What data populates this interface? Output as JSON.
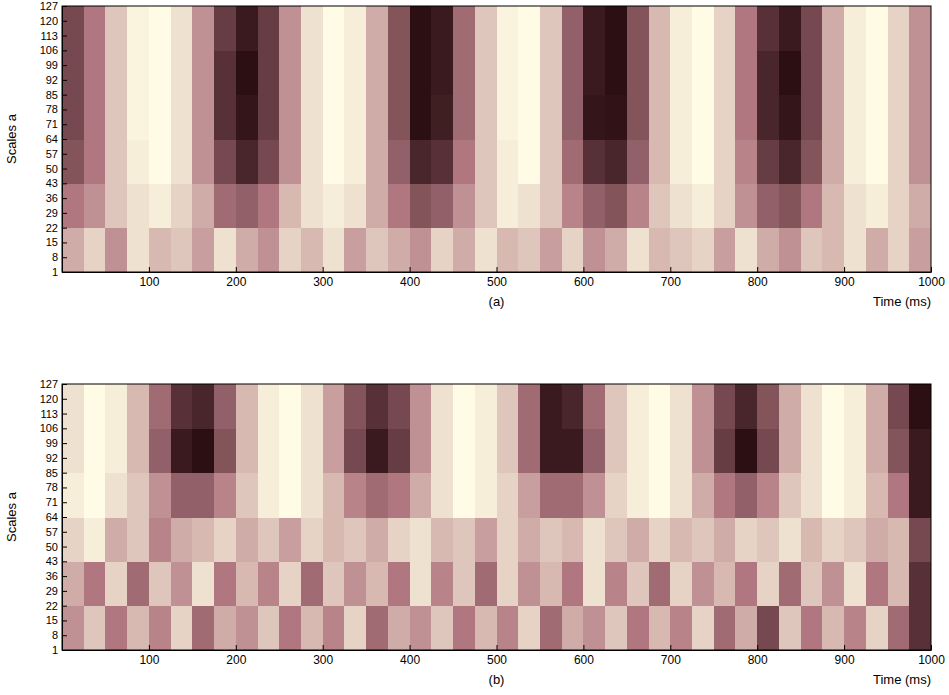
{
  "chart_data": [
    {
      "type": "heatmap",
      "title": "(a)",
      "x_label": "Time (ms)",
      "y_label": "Scales a",
      "xlim": [
        0,
        1000
      ],
      "xticks": [
        100,
        200,
        300,
        400,
        500,
        600,
        700,
        800,
        900,
        1000
      ],
      "ylim": [
        1,
        127
      ],
      "yticks": [
        1,
        8,
        15,
        22,
        29,
        36,
        43,
        50,
        57,
        64,
        71,
        78,
        85,
        92,
        99,
        106,
        113,
        120,
        127
      ],
      "x_edges": [
        0,
        25,
        50,
        75,
        100,
        125,
        150,
        175,
        200,
        225,
        250,
        275,
        300,
        325,
        350,
        375,
        400,
        425,
        450,
        475,
        500,
        525,
        550,
        575,
        600,
        625,
        650,
        675,
        700,
        725,
        750,
        775,
        800,
        825,
        850,
        875,
        900,
        925,
        950,
        975,
        1000
      ],
      "y_edges": [
        1,
        22,
        43,
        64,
        85,
        106,
        127
      ],
      "zlim": [
        0,
        1
      ],
      "cells": [
        [
          0.7,
          0.85,
          0.6,
          0.9,
          0.75,
          0.8,
          0.65,
          0.9,
          0.7,
          0.6,
          0.85,
          0.75,
          0.9,
          0.65,
          0.8,
          0.7,
          0.6,
          0.85,
          0.7,
          0.9,
          0.75,
          0.8,
          0.65,
          0.85,
          0.6,
          0.7,
          0.9,
          0.75,
          0.8,
          0.85,
          0.65,
          0.9,
          0.7,
          0.6,
          0.8,
          0.75,
          0.9,
          0.7,
          0.85,
          0.65
        ],
        [
          0.5,
          0.6,
          0.8,
          0.9,
          0.95,
          0.85,
          0.7,
          0.45,
          0.4,
          0.5,
          0.75,
          0.9,
          0.95,
          0.9,
          0.7,
          0.5,
          0.35,
          0.4,
          0.6,
          0.8,
          0.95,
          0.9,
          0.8,
          0.55,
          0.4,
          0.35,
          0.55,
          0.8,
          0.9,
          0.95,
          0.85,
          0.6,
          0.4,
          0.35,
          0.5,
          0.75,
          0.9,
          0.95,
          0.85,
          0.7
        ],
        [
          0.35,
          0.5,
          0.8,
          0.95,
          1.0,
          0.9,
          0.6,
          0.3,
          0.15,
          0.3,
          0.6,
          0.9,
          1.0,
          0.95,
          0.7,
          0.4,
          0.15,
          0.2,
          0.5,
          0.8,
          0.95,
          1.0,
          0.8,
          0.45,
          0.2,
          0.15,
          0.4,
          0.75,
          0.95,
          1.0,
          0.85,
          0.55,
          0.25,
          0.15,
          0.35,
          0.7,
          0.95,
          1.0,
          0.85,
          0.6
        ],
        [
          0.3,
          0.5,
          0.8,
          0.97,
          1.0,
          0.9,
          0.6,
          0.2,
          0.08,
          0.25,
          0.6,
          0.9,
          1.0,
          0.95,
          0.7,
          0.35,
          0.05,
          0.12,
          0.45,
          0.8,
          0.97,
          1.0,
          0.8,
          0.4,
          0.08,
          0.07,
          0.35,
          0.75,
          0.95,
          1.0,
          0.85,
          0.5,
          0.15,
          0.08,
          0.3,
          0.7,
          0.95,
          1.0,
          0.85,
          0.6
        ],
        [
          0.3,
          0.5,
          0.8,
          0.97,
          1.0,
          0.9,
          0.6,
          0.2,
          0.05,
          0.25,
          0.6,
          0.9,
          1.0,
          0.95,
          0.7,
          0.35,
          0.05,
          0.1,
          0.45,
          0.8,
          0.97,
          1.0,
          0.8,
          0.4,
          0.1,
          0.05,
          0.35,
          0.75,
          0.95,
          1.0,
          0.85,
          0.5,
          0.15,
          0.05,
          0.3,
          0.7,
          0.95,
          1.0,
          0.85,
          0.6
        ],
        [
          0.3,
          0.5,
          0.8,
          0.97,
          1.0,
          0.9,
          0.6,
          0.25,
          0.1,
          0.25,
          0.6,
          0.9,
          1.0,
          0.95,
          0.7,
          0.35,
          0.05,
          0.1,
          0.45,
          0.8,
          0.97,
          1.0,
          0.8,
          0.4,
          0.1,
          0.05,
          0.35,
          0.75,
          0.95,
          1.0,
          0.85,
          0.5,
          0.2,
          0.1,
          0.3,
          0.7,
          0.95,
          1.0,
          0.85,
          0.6
        ]
      ]
    },
    {
      "type": "heatmap",
      "title": "(b)",
      "x_label": "Time (ms)",
      "y_label": "Scales a",
      "xlim": [
        0,
        1000
      ],
      "xticks": [
        100,
        200,
        300,
        400,
        500,
        600,
        700,
        800,
        900,
        1000
      ],
      "ylim": [
        1,
        127
      ],
      "yticks": [
        1,
        8,
        15,
        22,
        29,
        36,
        43,
        50,
        57,
        64,
        71,
        78,
        85,
        92,
        99,
        106,
        113,
        120,
        127
      ],
      "x_edges": [
        0,
        25,
        50,
        75,
        100,
        125,
        150,
        175,
        200,
        225,
        250,
        275,
        300,
        325,
        350,
        375,
        400,
        425,
        450,
        475,
        500,
        525,
        550,
        575,
        600,
        625,
        650,
        675,
        700,
        725,
        750,
        775,
        800,
        825,
        850,
        875,
        900,
        925,
        950,
        975,
        1000
      ],
      "y_edges": [
        1,
        22,
        43,
        64,
        85,
        106,
        127
      ],
      "zlim": [
        0,
        1
      ],
      "cells": [
        [
          0.6,
          0.8,
          0.5,
          0.75,
          0.55,
          0.85,
          0.45,
          0.7,
          0.6,
          0.8,
          0.5,
          0.75,
          0.55,
          0.85,
          0.45,
          0.7,
          0.6,
          0.8,
          0.5,
          0.75,
          0.55,
          0.85,
          0.45,
          0.7,
          0.6,
          0.8,
          0.5,
          0.75,
          0.55,
          0.85,
          0.45,
          0.7,
          0.3,
          0.8,
          0.5,
          0.75,
          0.55,
          0.85,
          0.45,
          0.2
        ],
        [
          0.7,
          0.5,
          0.85,
          0.45,
          0.8,
          0.6,
          0.9,
          0.5,
          0.75,
          0.55,
          0.85,
          0.45,
          0.8,
          0.6,
          0.75,
          0.5,
          0.9,
          0.55,
          0.8,
          0.45,
          0.85,
          0.6,
          0.75,
          0.5,
          0.9,
          0.55,
          0.8,
          0.45,
          0.85,
          0.6,
          0.75,
          0.5,
          0.85,
          0.45,
          0.8,
          0.6,
          0.9,
          0.5,
          0.75,
          0.2
        ],
        [
          0.85,
          0.95,
          0.7,
          0.8,
          0.55,
          0.7,
          0.75,
          0.85,
          0.7,
          0.8,
          0.65,
          0.85,
          0.75,
          0.8,
          0.7,
          0.85,
          0.9,
          0.75,
          0.8,
          0.65,
          0.85,
          0.7,
          0.8,
          0.75,
          0.9,
          0.8,
          0.7,
          0.85,
          0.75,
          0.8,
          0.7,
          0.85,
          0.8,
          0.9,
          0.75,
          0.85,
          0.8,
          0.7,
          0.75,
          0.3
        ],
        [
          0.95,
          1.0,
          0.9,
          0.8,
          0.6,
          0.4,
          0.4,
          0.55,
          0.8,
          0.95,
          1.0,
          0.9,
          0.75,
          0.55,
          0.45,
          0.5,
          0.7,
          0.9,
          1.0,
          0.95,
          0.85,
          0.65,
          0.45,
          0.45,
          0.6,
          0.85,
          0.95,
          1.0,
          0.9,
          0.7,
          0.5,
          0.4,
          0.55,
          0.8,
          0.9,
          1.0,
          0.95,
          0.75,
          0.5,
          0.1
        ],
        [
          0.9,
          1.0,
          0.95,
          0.75,
          0.4,
          0.1,
          0.05,
          0.35,
          0.75,
          0.95,
          1.0,
          0.9,
          0.65,
          0.3,
          0.1,
          0.25,
          0.6,
          0.9,
          1.0,
          0.95,
          0.8,
          0.45,
          0.1,
          0.1,
          0.4,
          0.8,
          0.95,
          1.0,
          0.9,
          0.6,
          0.25,
          0.05,
          0.3,
          0.7,
          0.9,
          1.0,
          0.95,
          0.7,
          0.35,
          0.1
        ],
        [
          0.9,
          1.0,
          0.95,
          0.75,
          0.45,
          0.2,
          0.15,
          0.4,
          0.75,
          0.95,
          1.0,
          0.9,
          0.65,
          0.35,
          0.2,
          0.3,
          0.6,
          0.9,
          1.0,
          0.95,
          0.8,
          0.45,
          0.1,
          0.15,
          0.45,
          0.8,
          0.95,
          1.0,
          0.9,
          0.6,
          0.3,
          0.15,
          0.35,
          0.7,
          0.9,
          1.0,
          0.95,
          0.7,
          0.3,
          0.05
        ]
      ]
    }
  ]
}
